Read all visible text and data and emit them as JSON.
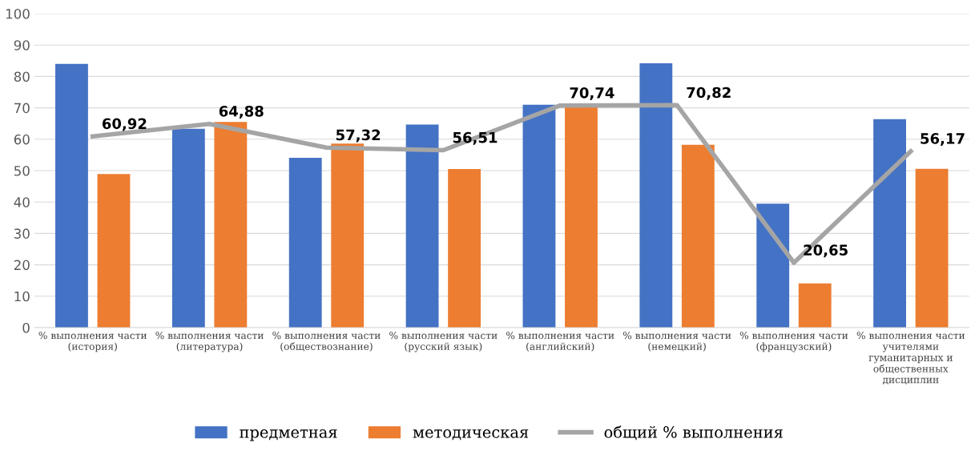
{
  "chart_data": {
    "type": "bar",
    "categories": [
      "% выполнения части\n(история)",
      "% выполнения части\n(литература)",
      "% выполнения части\n(обществознание)",
      "% выполнения части\n(русский язык)",
      "% выполнения части\n(английский)",
      "% выполнения части\n(немецкий)",
      "% выполнения части\n(французский)",
      "% выполнения части\nучителями\nгуманитарных и\nобщественных\nдисциплин"
    ],
    "series": [
      {
        "name": "предметная",
        "color": "#4472c4",
        "values": [
          84,
          63.3,
          54.1,
          64.7,
          71,
          84.2,
          39.5,
          66.4
        ]
      },
      {
        "name": "методическая",
        "color": "#ed7d31",
        "values": [
          48.9,
          65.5,
          58.6,
          50.5,
          70.5,
          58.2,
          14.1,
          50.6
        ]
      },
      {
        "name": "общий % выполнения",
        "type": "line",
        "color": "#a5a5a5",
        "values": [
          60.92,
          64.88,
          57.32,
          56.51,
          70.74,
          70.82,
          20.65,
          56.17
        ],
        "value_labels": [
          "60,92",
          "64,88",
          "57,32",
          "56,51",
          "70,74",
          "70,82",
          "20,65",
          "56,17"
        ]
      }
    ],
    "ylim": [
      0,
      100
    ],
    "yticks": [
      0,
      10,
      20,
      30,
      40,
      50,
      60,
      70,
      80,
      90,
      100
    ],
    "grid": "y",
    "legend": "bottom",
    "marker": "none",
    "line_style": "solid"
  }
}
